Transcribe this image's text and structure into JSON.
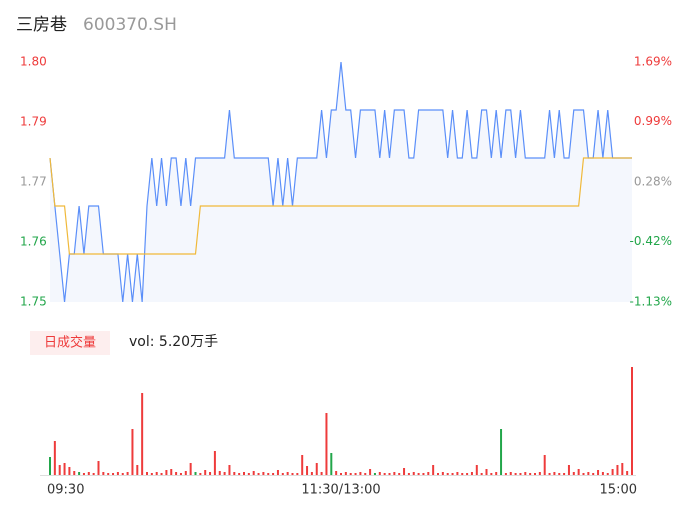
{
  "chart_data": {
    "type": "intraday",
    "title": "三房巷",
    "subtitle": "600370.SH",
    "price_color": "#5b8ff9",
    "avg_color": "#f0b93a",
    "up_color": "#ee3b3b",
    "down_color": "#22a64a",
    "flat_color": "#999999",
    "xlim": [
      0,
      120
    ],
    "xticks": [
      {
        "value": 0,
        "label": "09:30"
      },
      {
        "value": 60,
        "label": "11:30/13:00"
      },
      {
        "value": 120,
        "label": "15:00"
      }
    ],
    "ylim": [
      1.75,
      1.8
    ],
    "yticks": [
      {
        "value": 1.8,
        "label": "1.80"
      },
      {
        "value": 1.7875,
        "label": "1.79"
      },
      {
        "value": 1.775,
        "label": "1.77"
      },
      {
        "value": 1.7625,
        "label": "1.76"
      },
      1.75
    ],
    "y2lim": [
      -1.13,
      1.69
    ],
    "y2ticks": [
      {
        "value": 1.69,
        "label": "1.69%"
      },
      {
        "value": 0.99,
        "label": "0.99%"
      },
      {
        "value": 0.28,
        "label": "0.28%"
      },
      {
        "value": -0.42,
        "label": "-0.42%"
      },
      {
        "value": -1.13,
        "label": "-1.13%"
      }
    ],
    "series": [
      {
        "color": "#5b8ff9",
        "values": [
          1.78,
          1.77,
          1.76,
          1.75,
          1.76,
          1.76,
          1.77,
          1.76,
          1.77,
          1.77,
          1.77,
          1.76,
          1.76,
          1.76,
          1.76,
          1.75,
          1.76,
          1.75,
          1.76,
          1.75,
          1.77,
          1.78,
          1.77,
          1.78,
          1.77,
          1.78,
          1.78,
          1.77,
          1.78,
          1.77,
          1.78,
          1.78,
          1.78,
          1.78,
          1.78,
          1.78,
          1.78,
          1.79,
          1.78,
          1.78,
          1.78,
          1.78,
          1.78,
          1.78,
          1.78,
          1.78,
          1.77,
          1.78,
          1.77,
          1.78,
          1.77,
          1.78,
          1.78,
          1.78,
          1.78,
          1.78,
          1.79,
          1.78,
          1.79,
          1.79,
          1.8,
          1.79,
          1.79,
          1.78,
          1.79,
          1.79,
          1.79,
          1.79,
          1.78,
          1.79,
          1.78,
          1.79,
          1.79,
          1.79,
          1.78,
          1.78,
          1.79,
          1.79,
          1.79,
          1.79,
          1.79,
          1.79,
          1.78,
          1.79,
          1.78,
          1.78,
          1.79,
          1.78,
          1.78,
          1.79,
          1.79,
          1.78,
          1.79,
          1.78,
          1.79,
          1.79,
          1.78,
          1.79,
          1.78,
          1.78,
          1.78,
          1.78,
          1.78,
          1.79,
          1.78,
          1.79,
          1.78,
          1.78,
          1.79,
          1.79,
          1.79,
          1.78,
          1.78,
          1.79,
          1.78,
          1.79,
          1.78,
          1.78,
          1.78,
          1.78,
          1.78
        ]
      },
      {
        "color": "#f0b93a",
        "values": [
          1.78,
          1.77,
          1.77,
          1.77,
          1.76,
          1.76,
          1.76,
          1.76,
          1.76,
          1.76,
          1.76,
          1.76,
          1.76,
          1.76,
          1.76,
          1.76,
          1.76,
          1.76,
          1.76,
          1.76,
          1.76,
          1.76,
          1.76,
          1.76,
          1.76,
          1.76,
          1.76,
          1.76,
          1.76,
          1.76,
          1.76,
          1.77,
          1.77,
          1.77,
          1.77,
          1.77,
          1.77,
          1.77,
          1.77,
          1.77,
          1.77,
          1.77,
          1.77,
          1.77,
          1.77,
          1.77,
          1.77,
          1.77,
          1.77,
          1.77,
          1.77,
          1.77,
          1.77,
          1.77,
          1.77,
          1.77,
          1.77,
          1.77,
          1.77,
          1.77,
          1.77,
          1.77,
          1.77,
          1.77,
          1.77,
          1.77,
          1.77,
          1.77,
          1.77,
          1.77,
          1.77,
          1.77,
          1.77,
          1.77,
          1.77,
          1.77,
          1.77,
          1.77,
          1.77,
          1.77,
          1.77,
          1.77,
          1.77,
          1.77,
          1.77,
          1.77,
          1.77,
          1.77,
          1.77,
          1.77,
          1.77,
          1.77,
          1.77,
          1.77,
          1.77,
          1.77,
          1.77,
          1.77,
          1.77,
          1.77,
          1.77,
          1.77,
          1.77,
          1.77,
          1.77,
          1.77,
          1.77,
          1.77,
          1.77,
          1.77,
          1.78,
          1.78,
          1.78,
          1.78,
          1.78,
          1.78,
          1.78,
          1.78,
          1.78,
          1.78,
          1.78
        ]
      }
    ],
    "volume_badge": "日成交量",
    "volume_text": "vol: 5.20万手",
    "volume": [
      18,
      34,
      10,
      12,
      8,
      4,
      3,
      2,
      3,
      2,
      14,
      3,
      2,
      2,
      3,
      2,
      3,
      46,
      10,
      82,
      3,
      2,
      3,
      2,
      5,
      6,
      3,
      2,
      4,
      12,
      3,
      2,
      5,
      3,
      24,
      4,
      3,
      10,
      3,
      2,
      3,
      2,
      4,
      2,
      3,
      2,
      2,
      5,
      2,
      3,
      2,
      2,
      20,
      9,
      3,
      12,
      3,
      62,
      22,
      4,
      2,
      3,
      2,
      2,
      3,
      2,
      6,
      2,
      3,
      2,
      2,
      3,
      2,
      7,
      2,
      3,
      2,
      2,
      3,
      10,
      2,
      3,
      2,
      2,
      3,
      2,
      2,
      3,
      10,
      2,
      6,
      2,
      3,
      46,
      2,
      3,
      2,
      2,
      3,
      2,
      2,
      3,
      20,
      2,
      3,
      2,
      2,
      10,
      3,
      6,
      2,
      3,
      2,
      5,
      3,
      2,
      6,
      10,
      12,
      4,
      108
    ],
    "volume_colors": [
      "#22a64a",
      "#ee3b3b",
      "#ee3b3b",
      "#ee3b3b",
      "#ee3b3b",
      "#ee3b3b",
      "#22a64a",
      "#ee3b3b",
      "#ee3b3b",
      "#ee3b3b",
      "#ee3b3b",
      "#ee3b3b",
      "#ee3b3b",
      "#ee3b3b",
      "#ee3b3b",
      "#ee3b3b",
      "#ee3b3b",
      "#ee3b3b",
      "#ee3b3b",
      "#ee3b3b",
      "#ee3b3b",
      "#ee3b3b",
      "#ee3b3b",
      "#ee3b3b",
      "#ee3b3b",
      "#ee3b3b",
      "#ee3b3b",
      "#ee3b3b",
      "#ee3b3b",
      "#ee3b3b",
      "#22a64a",
      "#ee3b3b",
      "#ee3b3b",
      "#ee3b3b",
      "#ee3b3b",
      "#ee3b3b",
      "#ee3b3b",
      "#ee3b3b",
      "#ee3b3b",
      "#ee3b3b",
      "#ee3b3b",
      "#ee3b3b",
      "#ee3b3b",
      "#ee3b3b",
      "#ee3b3b",
      "#ee3b3b",
      "#ee3b3b",
      "#ee3b3b",
      "#ee3b3b",
      "#ee3b3b",
      "#ee3b3b",
      "#ee3b3b",
      "#ee3b3b",
      "#ee3b3b",
      "#ee3b3b",
      "#ee3b3b",
      "#ee3b3b",
      "#ee3b3b",
      "#22a64a",
      "#ee3b3b",
      "#ee3b3b",
      "#ee3b3b",
      "#ee3b3b",
      "#ee3b3b",
      "#ee3b3b",
      "#ee3b3b",
      "#ee3b3b",
      "#22a64a",
      "#ee3b3b",
      "#ee3b3b",
      "#ee3b3b",
      "#ee3b3b",
      "#ee3b3b",
      "#ee3b3b",
      "#ee3b3b",
      "#ee3b3b",
      "#ee3b3b",
      "#ee3b3b",
      "#ee3b3b",
      "#ee3b3b",
      "#ee3b3b",
      "#ee3b3b",
      "#ee3b3b",
      "#ee3b3b",
      "#ee3b3b",
      "#ee3b3b",
      "#ee3b3b",
      "#ee3b3b",
      "#ee3b3b",
      "#ee3b3b",
      "#ee3b3b",
      "#ee3b3b",
      "#ee3b3b",
      "#22a64a",
      "#ee3b3b",
      "#ee3b3b",
      "#ee3b3b",
      "#ee3b3b",
      "#ee3b3b",
      "#ee3b3b",
      "#ee3b3b",
      "#ee3b3b",
      "#ee3b3b",
      "#ee3b3b",
      "#ee3b3b",
      "#ee3b3b",
      "#ee3b3b",
      "#ee3b3b",
      "#ee3b3b",
      "#ee3b3b",
      "#ee3b3b",
      "#ee3b3b",
      "#ee3b3b",
      "#ee3b3b",
      "#ee3b3b",
      "#ee3b3b",
      "#ee3b3b",
      "#ee3b3b",
      "#ee3b3b",
      "#ee3b3b",
      "#ee3b3b"
    ]
  }
}
